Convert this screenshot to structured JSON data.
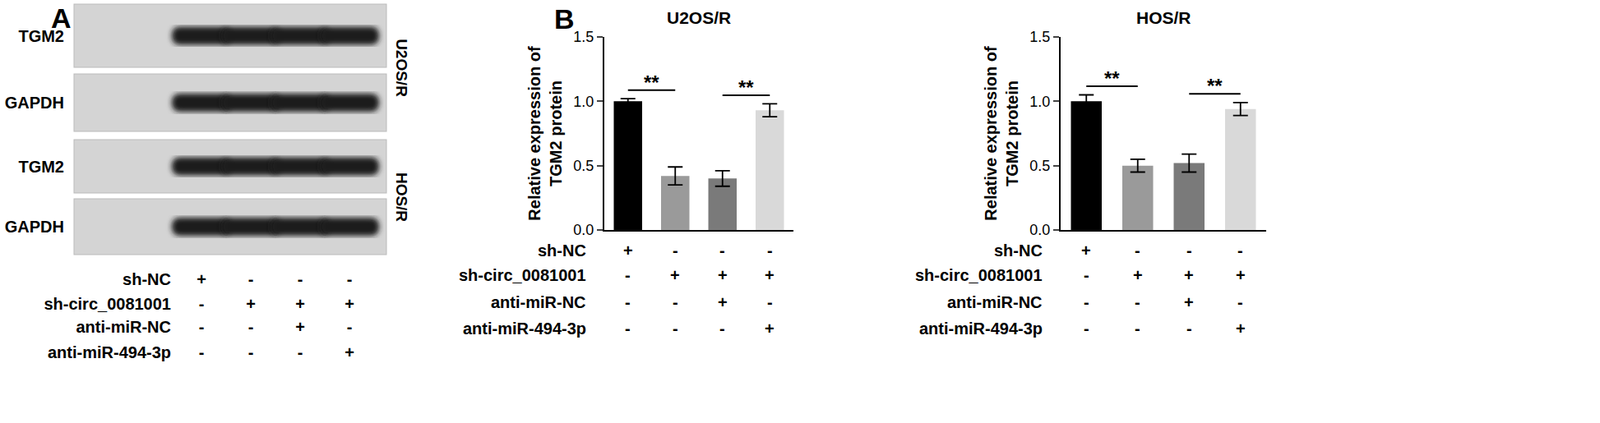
{
  "panels": [
    "A",
    "B"
  ],
  "blot": {
    "blocks": [
      {
        "cell_line": "U2OS/R",
        "rows": [
          "TGM2",
          "GAPDH"
        ]
      },
      {
        "cell_line": "HOS/R",
        "rows": [
          "TGM2",
          "GAPDH"
        ]
      }
    ],
    "conditions": [
      {
        "name": "sh-NC",
        "marks": [
          "+",
          "-",
          "-",
          "-"
        ]
      },
      {
        "name": "sh-circ_0081001",
        "marks": [
          "-",
          "+",
          "+",
          "+"
        ]
      },
      {
        "name": "anti-miR-NC",
        "marks": [
          "-",
          "-",
          "+",
          "-"
        ]
      },
      {
        "name": "anti-miR-494-3p",
        "marks": [
          "-",
          "-",
          "-",
          "+"
        ]
      }
    ]
  },
  "chart_data": [
    {
      "type": "bar",
      "title": "U2OS/R",
      "y_label": "Relative expression of\nTGM2 protein",
      "categories": [
        null,
        null,
        null,
        null
      ],
      "values": [
        1.0,
        0.42,
        0.4,
        0.93
      ],
      "errors": [
        0.02,
        0.07,
        0.06,
        0.05
      ],
      "colors": [
        "#000000",
        "#9a9a9a",
        "#7a7a7a",
        "#d9d9d9"
      ],
      "ylim": [
        0,
        1.5
      ],
      "yticks": [
        {
          "value": 0,
          "label": "0.0"
        },
        {
          "value": 0.5,
          "label": "0.5"
        },
        {
          "value": 1,
          "label": "1.0"
        },
        {
          "value": 1.5,
          "label": "1.5"
        }
      ],
      "grid": false,
      "tick_labels": "y",
      "significance": [
        {
          "from": 0,
          "to": 1,
          "label": "**"
        },
        {
          "from": 2,
          "to": 3,
          "label": "**"
        }
      ],
      "conditions": [
        {
          "name": "sh-NC",
          "marks": [
            "+",
            "-",
            "-",
            "-"
          ]
        },
        {
          "name": "sh-circ_0081001",
          "marks": [
            "-",
            "+",
            "+",
            "+"
          ]
        },
        {
          "name": "anti-miR-NC",
          "marks": [
            "-",
            "-",
            "+",
            "-"
          ]
        },
        {
          "name": "anti-miR-494-3p",
          "marks": [
            "-",
            "-",
            "-",
            "+"
          ]
        }
      ]
    },
    {
      "type": "bar",
      "title": "HOS/R",
      "y_label": "Relative expression of\nTGM2 protein",
      "categories": [
        null,
        null,
        null,
        null
      ],
      "values": [
        1.0,
        0.5,
        0.52,
        0.94
      ],
      "errors": [
        0.05,
        0.05,
        0.07,
        0.05
      ],
      "colors": [
        "#000000",
        "#9a9a9a",
        "#7a7a7a",
        "#d9d9d9"
      ],
      "ylim": [
        0,
        1.5
      ],
      "yticks": [
        {
          "value": 0,
          "label": "0.0"
        },
        {
          "value": 0.5,
          "label": "0.5"
        },
        {
          "value": 1,
          "label": "1.0"
        },
        {
          "value": 1.5,
          "label": "1.5"
        }
      ],
      "grid": false,
      "tick_labels": "y",
      "significance": [
        {
          "from": 0,
          "to": 1,
          "label": "**"
        },
        {
          "from": 2,
          "to": 3,
          "label": "**"
        }
      ],
      "conditions": [
        {
          "name": "sh-NC",
          "marks": [
            "+",
            "-",
            "-",
            "-"
          ]
        },
        {
          "name": "sh-circ_0081001",
          "marks": [
            "-",
            "+",
            "+",
            "+"
          ]
        },
        {
          "name": "anti-miR-NC",
          "marks": [
            "-",
            "-",
            "+",
            "-"
          ]
        },
        {
          "name": "anti-miR-494-3p",
          "marks": [
            "-",
            "-",
            "-",
            "+"
          ]
        }
      ]
    }
  ]
}
